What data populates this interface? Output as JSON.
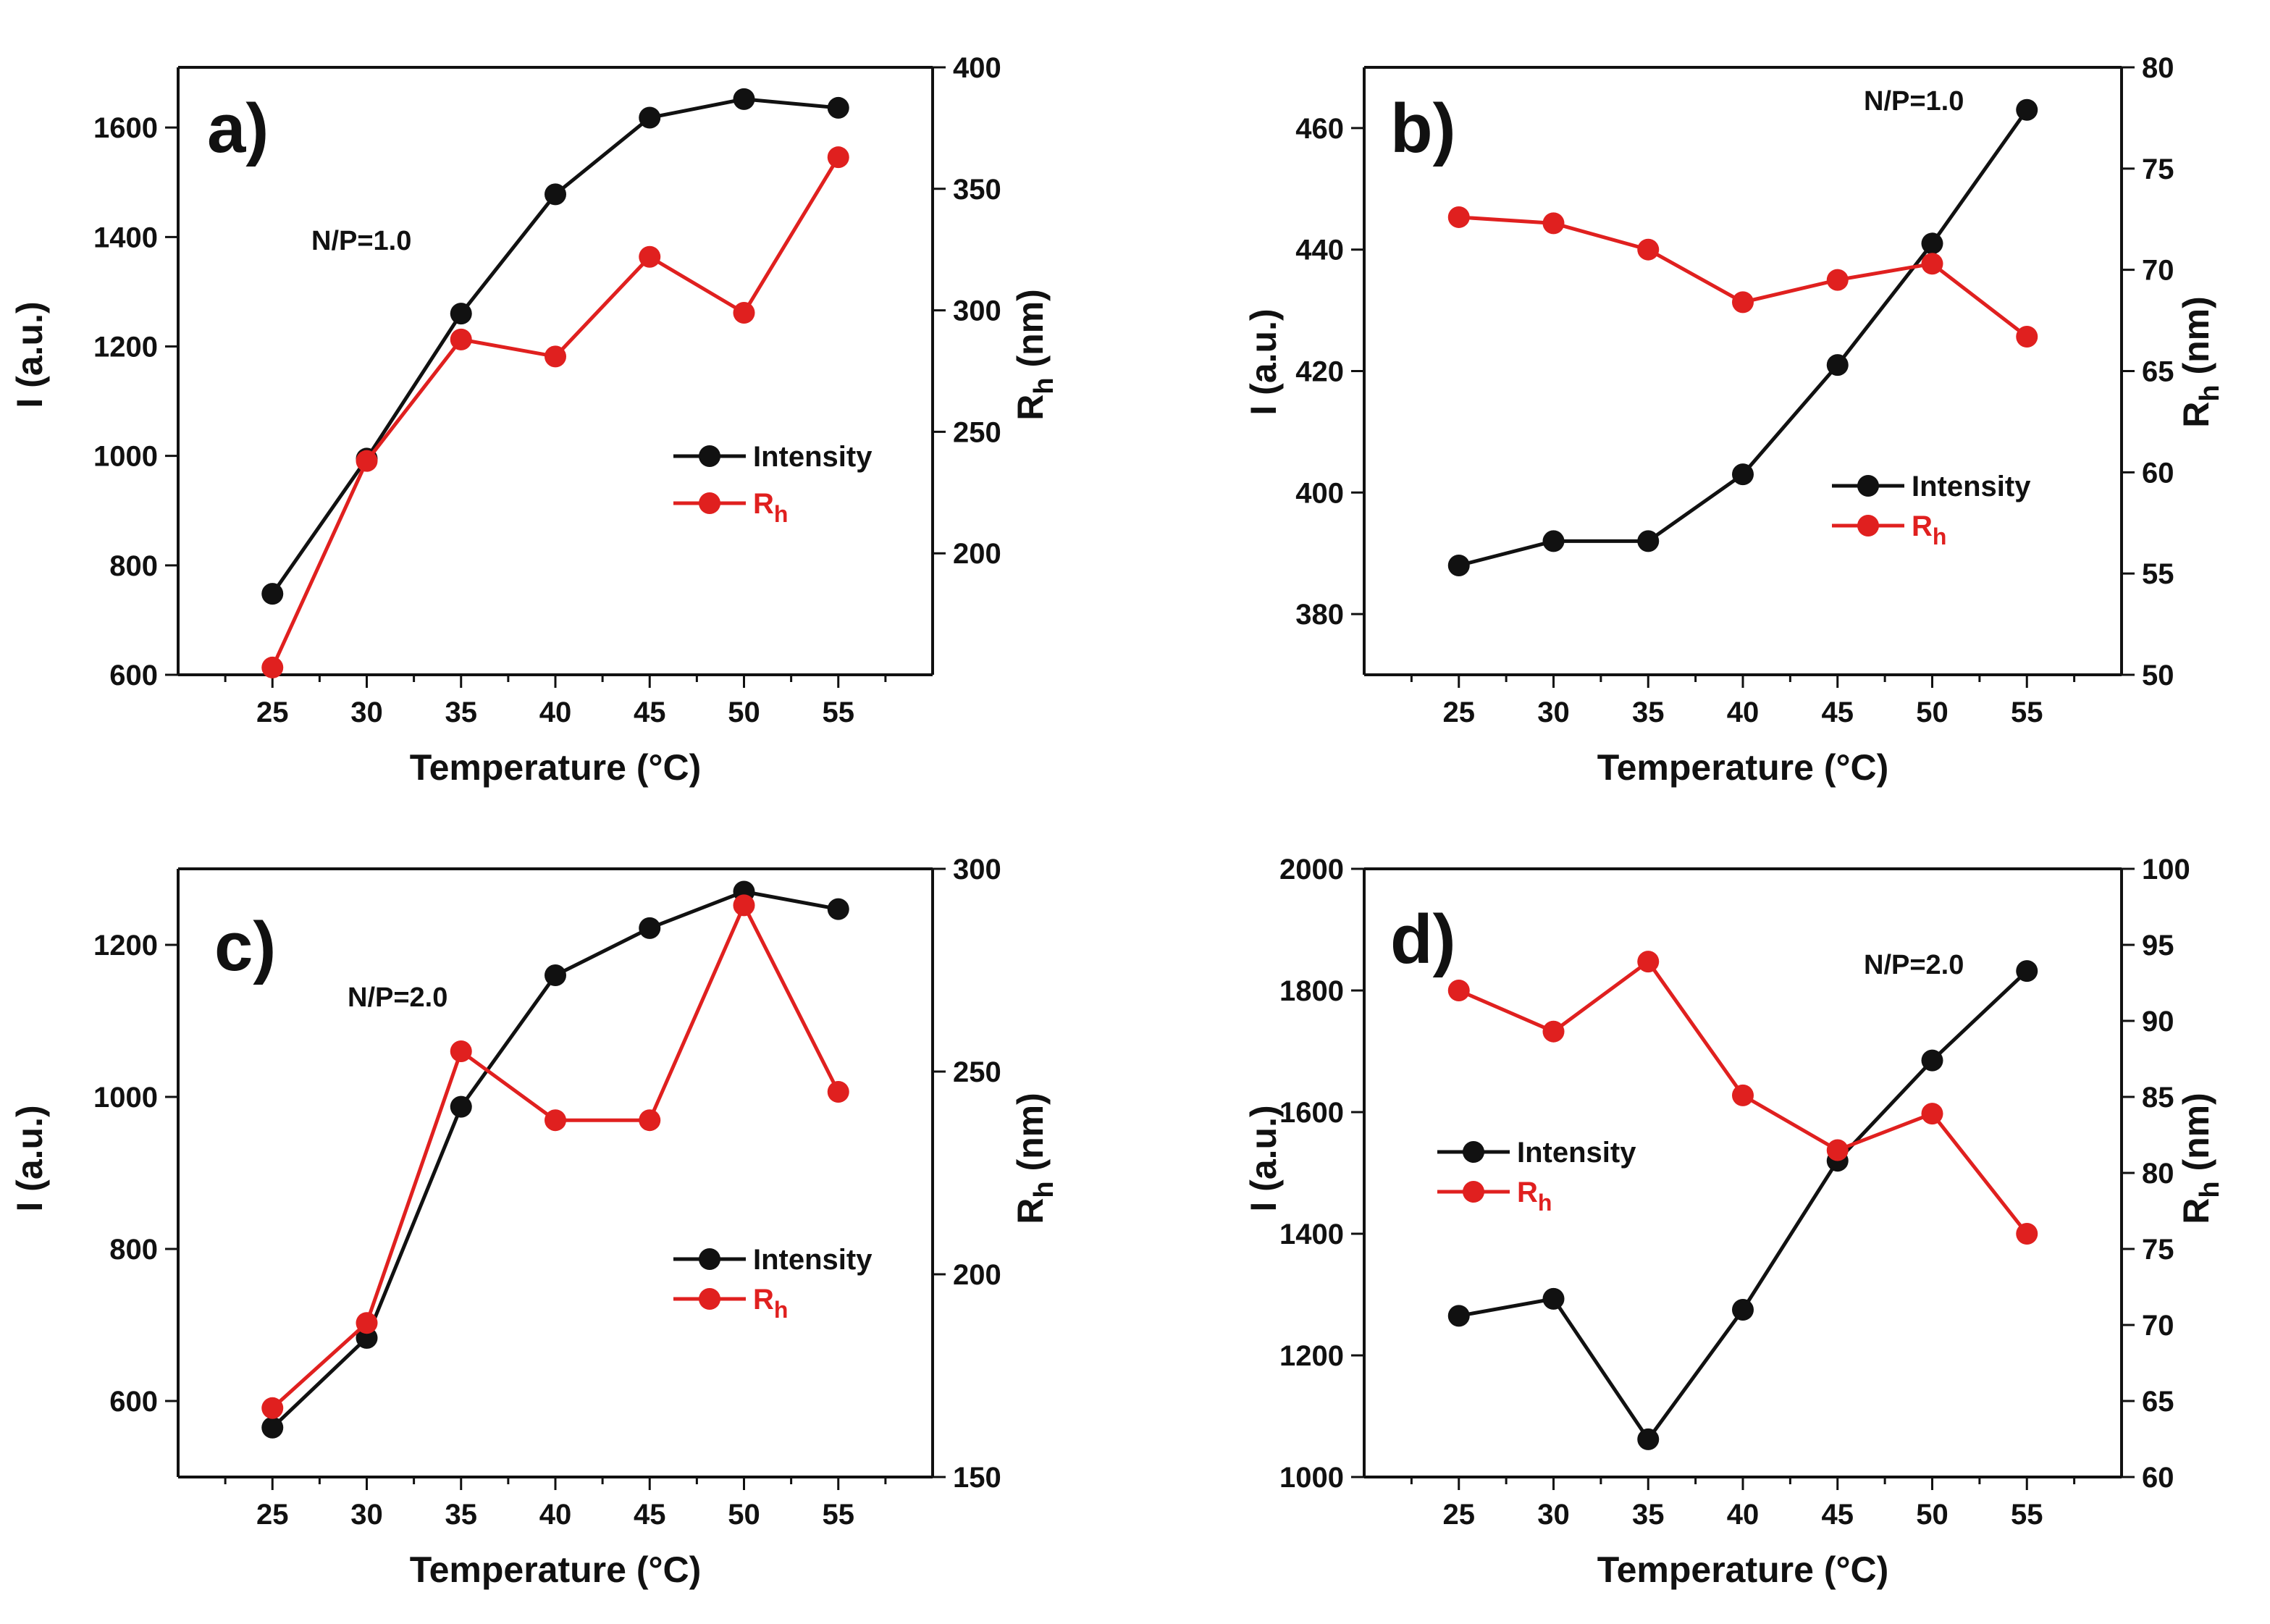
{
  "colors": {
    "intensity": "#111111",
    "rh": "#e0201f",
    "axis": "#111111"
  },
  "chart_data": [
    {
      "type": "line",
      "panel_label": "a)",
      "annotation": "N/P=1.0",
      "xlabel": "Temperature (°C)",
      "ylabel_left": "I (a.u.)",
      "ylabel_right_main": "R",
      "ylabel_right_sub": "h",
      "ylabel_right_unit": " (nm)",
      "x": [
        25,
        30,
        35,
        40,
        45,
        50,
        55
      ],
      "xlim": [
        20,
        60
      ],
      "xticks": [
        25,
        30,
        35,
        40,
        45,
        50,
        55
      ],
      "ylim_left": [
        600,
        1710
      ],
      "yticks_left": [
        600,
        800,
        1000,
        1200,
        1400,
        1600
      ],
      "ylim_right": [
        150,
        400
      ],
      "yticks_right": [
        200,
        250,
        300,
        350,
        400
      ],
      "legend": {
        "intensity_label": "Intensity",
        "rh_main": "R",
        "rh_sub": "h",
        "position": "center-right"
      },
      "series": [
        {
          "name": "Intensity",
          "axis": "left",
          "values": [
            748,
            995,
            1260,
            1478,
            1618,
            1652,
            1636
          ]
        },
        {
          "name": "Rh",
          "axis": "right",
          "values": [
            153,
            238,
            288,
            281,
            322,
            299,
            363
          ]
        }
      ]
    },
    {
      "type": "line",
      "panel_label": "b)",
      "annotation": "N/P=1.0",
      "xlabel": "Temperature (°C)",
      "ylabel_left": "I (a.u.)",
      "ylabel_right_main": "R",
      "ylabel_right_sub": "h",
      "ylabel_right_unit": " (nm)",
      "x": [
        25,
        30,
        35,
        40,
        45,
        50,
        55
      ],
      "xlim": [
        20,
        60
      ],
      "xticks": [
        25,
        30,
        35,
        40,
        45,
        50,
        55
      ],
      "ylim_left": [
        370,
        470
      ],
      "yticks_left": [
        380,
        400,
        420,
        440,
        460
      ],
      "ylim_right": [
        50,
        80
      ],
      "yticks_right": [
        50,
        55,
        60,
        65,
        70,
        75,
        80
      ],
      "legend": {
        "intensity_label": "Intensity",
        "rh_main": "R",
        "rh_sub": "h",
        "position": "center-right"
      },
      "series": [
        {
          "name": "Intensity",
          "axis": "left",
          "values": [
            388,
            392,
            392,
            403,
            421,
            441,
            463
          ]
        },
        {
          "name": "Rh",
          "axis": "right",
          "values": [
            72.6,
            72.3,
            71.0,
            68.4,
            69.5,
            70.3,
            66.7
          ]
        }
      ]
    },
    {
      "type": "line",
      "panel_label": "c)",
      "annotation": "N/P=2.0",
      "xlabel": "Temperature (°C)",
      "ylabel_left": "I (a.u.)",
      "ylabel_right_main": "R",
      "ylabel_right_sub": "h",
      "ylabel_right_unit": " (nm)",
      "x": [
        25,
        30,
        35,
        40,
        45,
        50,
        55
      ],
      "xlim": [
        20,
        60
      ],
      "xticks": [
        25,
        30,
        35,
        40,
        45,
        50,
        55
      ],
      "ylim_left": [
        500,
        1300
      ],
      "yticks_left": [
        600,
        800,
        1000,
        1200
      ],
      "ylim_right": [
        150,
        300
      ],
      "yticks_right": [
        150,
        200,
        250,
        300
      ],
      "legend": {
        "intensity_label": "Intensity",
        "rh_main": "R",
        "rh_sub": "h",
        "position": "center-right"
      },
      "series": [
        {
          "name": "Intensity",
          "axis": "left",
          "values": [
            565,
            683,
            987,
            1160,
            1222,
            1270,
            1247
          ]
        },
        {
          "name": "Rh",
          "axis": "right",
          "values": [
            167,
            188,
            255,
            238,
            238,
            291,
            245
          ]
        }
      ]
    },
    {
      "type": "line",
      "panel_label": "d)",
      "annotation": "N/P=2.0",
      "xlabel": "Temperature (°C)",
      "ylabel_left": "I (a.u.)",
      "ylabel_right_main": "R",
      "ylabel_right_sub": "h",
      "ylabel_right_unit": " (nm)",
      "x": [
        25,
        30,
        35,
        40,
        45,
        50,
        55
      ],
      "xlim": [
        20,
        60
      ],
      "xticks": [
        25,
        30,
        35,
        40,
        45,
        50,
        55
      ],
      "ylim_left": [
        1000,
        2000
      ],
      "yticks_left": [
        1000,
        1200,
        1400,
        1600,
        1800,
        2000
      ],
      "ylim_right": [
        60,
        100
      ],
      "yticks_right": [
        60,
        65,
        70,
        75,
        80,
        85,
        90,
        95,
        100
      ],
      "legend": {
        "intensity_label": "Intensity",
        "rh_main": "R",
        "rh_sub": "h",
        "position": "center-left"
      },
      "series": [
        {
          "name": "Intensity",
          "axis": "left",
          "values": [
            1265,
            1293,
            1062,
            1275,
            1520,
            1685,
            1832
          ]
        },
        {
          "name": "Rh",
          "axis": "right",
          "values": [
            92.0,
            89.3,
            93.9,
            85.1,
            81.5,
            83.9,
            76.0
          ]
        }
      ]
    }
  ]
}
